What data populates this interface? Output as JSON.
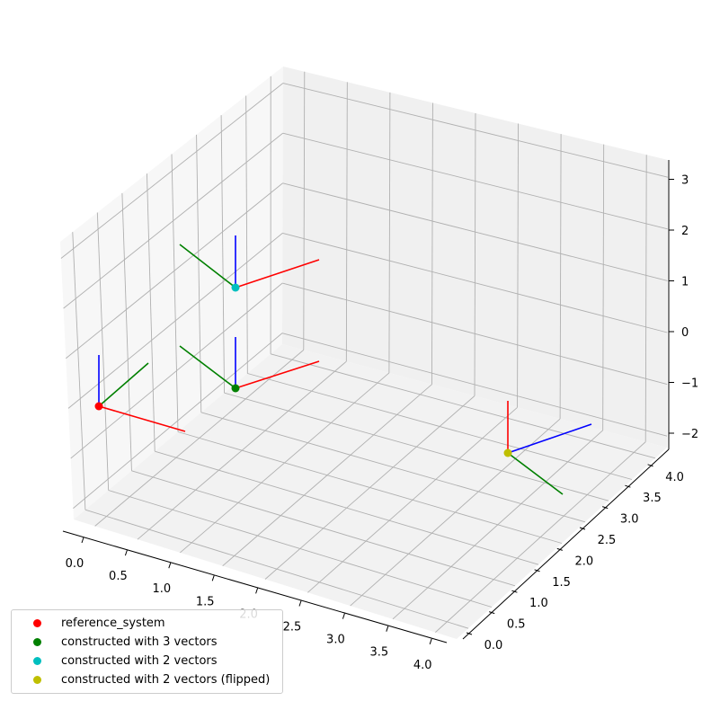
{
  "chart_data": {
    "type": "3d-line-scatter",
    "axes": {
      "x": {
        "ticks": [
          "0.0",
          "0.5",
          "1.0",
          "1.5",
          "2.0",
          "2.5",
          "3.0",
          "3.5",
          "4.0"
        ]
      },
      "y": {
        "ticks": [
          "0.0",
          "0.5",
          "1.0",
          "1.5",
          "2.0",
          "2.5",
          "3.0",
          "3.5",
          "4.0"
        ]
      },
      "z": {
        "ticks": [
          "−2",
          "−1",
          "0",
          "1",
          "2",
          "3"
        ]
      }
    },
    "grid": true,
    "legend_position": "bottom-left",
    "series": [
      {
        "name": "reference_system",
        "color": "#ff0000"
      },
      {
        "name": "constructed with 3 vectors",
        "color": "#008000"
      },
      {
        "name": "constructed with 2 vectors",
        "color": "#00bfbf"
      },
      {
        "name": "constructed with 2 vectors (flipped)",
        "color": "#bfbf00"
      }
    ],
    "axis_line_colors": {
      "x": "#ff0000",
      "y": "#008000",
      "z": "#0000ff"
    }
  }
}
